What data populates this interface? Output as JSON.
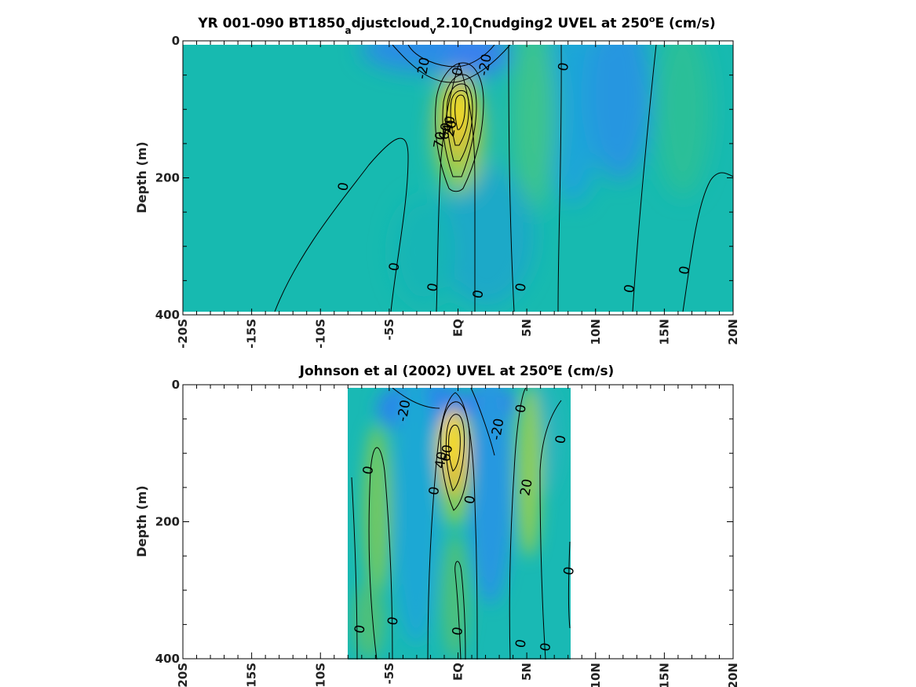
{
  "chart_data": [
    {
      "type": "heatmap",
      "title_parts": {
        "a": "YR 001-090 BT1850",
        "sub1": "a",
        "b": "djustcloud",
        "sub2": "v",
        "c": "2.10",
        "sub3": "l",
        "d": "Cnudging2 UVEL at 250",
        "sup": "o",
        "e": "E (cm/s)"
      },
      "ylabel": "Depth (m)",
      "xlabel": "",
      "xlim": [
        -20,
        20
      ],
      "ylim": [
        0,
        400
      ],
      "y_reversed": true,
      "x_ticks": [
        -20,
        -15,
        -10,
        -5,
        0,
        5,
        10,
        15,
        20
      ],
      "x_tick_labels": [
        "-20S",
        "-15S",
        "-10S",
        "-5S",
        "EQ",
        "5N",
        "10N",
        "15N",
        "20N"
      ],
      "y_ticks": [
        0,
        200,
        400
      ],
      "y_tick_labels": [
        "0",
        "200",
        "400"
      ],
      "colormap": "parula",
      "data_extent_x": [
        -20,
        20
      ],
      "data_extent_y": [
        5,
        395
      ],
      "contour_interval": 10,
      "contour_labels": [
        {
          "text": "-20",
          "x": -2.5,
          "y": 40
        },
        {
          "text": "0",
          "x": 0,
          "y": 45
        },
        {
          "text": "-20",
          "x": 2,
          "y": 35
        },
        {
          "text": "0",
          "x": 7.7,
          "y": 38
        },
        {
          "text": "70",
          "x": -1.3,
          "y": 145
        },
        {
          "text": "60",
          "x": -0.9,
          "y": 132
        },
        {
          "text": "40",
          "x": -0.6,
          "y": 122
        },
        {
          "text": "20",
          "x": -0.5,
          "y": 128
        },
        {
          "text": "0",
          "x": -8.3,
          "y": 213
        },
        {
          "text": "0",
          "x": -4.6,
          "y": 330
        },
        {
          "text": "0",
          "x": -1.8,
          "y": 360
        },
        {
          "text": "0",
          "x": 1.5,
          "y": 370
        },
        {
          "text": "0",
          "x": 4.6,
          "y": 360
        },
        {
          "text": "0",
          "x": 12.5,
          "y": 362
        },
        {
          "text": "0",
          "x": 16.5,
          "y": 335
        }
      ]
    },
    {
      "type": "heatmap",
      "title_parts": {
        "a": "Johnson et al (2002) UVEL at 250",
        "sup": "o",
        "b": "E (cm/s)"
      },
      "ylabel": "Depth (m)",
      "xlabel": "",
      "xlim": [
        -20,
        20
      ],
      "ylim": [
        0,
        400
      ],
      "y_reversed": true,
      "x_ticks": [
        -20,
        -15,
        -10,
        -5,
        0,
        5,
        10,
        15,
        20
      ],
      "x_tick_labels": [
        "-20S",
        "-15S",
        "-10S",
        "-5S",
        "EQ",
        "5N",
        "10N",
        "15N",
        "20N"
      ],
      "y_ticks": [
        0,
        200,
        400
      ],
      "y_tick_labels": [
        "0",
        "200",
        "400"
      ],
      "colormap": "parula",
      "data_extent_x": [
        -8,
        8
      ],
      "data_extent_y": [
        5,
        400
      ],
      "contour_interval": 10,
      "contour_labels": [
        {
          "text": "-20",
          "x": -3.9,
          "y": 38
        },
        {
          "text": "-20",
          "x": 2.9,
          "y": 65
        },
        {
          "text": "0",
          "x": 4.6,
          "y": 35
        },
        {
          "text": "0",
          "x": 7.5,
          "y": 80
        },
        {
          "text": "0",
          "x": -6.5,
          "y": 125
        },
        {
          "text": "0",
          "x": -1.7,
          "y": 155
        },
        {
          "text": "0",
          "x": 0.9,
          "y": 168
        },
        {
          "text": "20",
          "x": 5,
          "y": 150
        },
        {
          "text": "40",
          "x": -1.2,
          "y": 110
        },
        {
          "text": "60",
          "x": -0.8,
          "y": 100
        },
        {
          "text": "0",
          "x": 8.1,
          "y": 272
        },
        {
          "text": "0",
          "x": -7.1,
          "y": 357
        },
        {
          "text": "0",
          "x": -4.7,
          "y": 345
        },
        {
          "text": "0",
          "x": 0,
          "y": 360
        },
        {
          "text": "0",
          "x": 4.6,
          "y": 378
        },
        {
          "text": "0",
          "x": 6.4,
          "y": 383
        }
      ]
    }
  ]
}
